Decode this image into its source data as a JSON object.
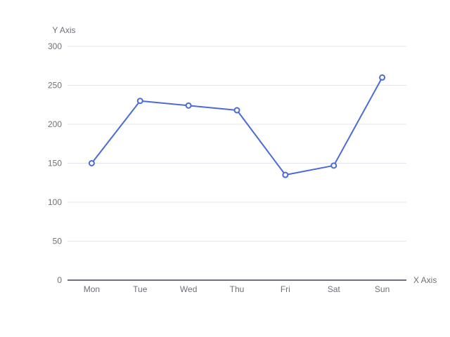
{
  "chart_data": {
    "type": "line",
    "title": "",
    "categories": [
      "Mon",
      "Tue",
      "Wed",
      "Thu",
      "Fri",
      "Sat",
      "Sun"
    ],
    "values": [
      150,
      230,
      224,
      218,
      135,
      147,
      260
    ],
    "xlabel": "X Axis",
    "ylabel": "Y Axis",
    "ylim": [
      0,
      300
    ],
    "yticks": [
      0,
      50,
      100,
      150,
      200,
      250,
      300
    ],
    "grid": true,
    "legend": "none",
    "marker": "empty-circle",
    "colors": {
      "line": "#4B6BD5",
      "marker_stroke": "#4B6BD5",
      "marker_fill": "#ffffff",
      "gridline": "#E0E6F1",
      "axis_line": "#6E7079",
      "text": "#6E7079",
      "background": "#ffffff"
    }
  }
}
